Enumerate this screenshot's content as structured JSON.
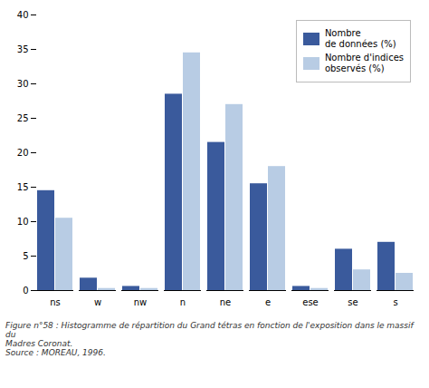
{
  "chart_data": {
    "type": "bar",
    "caption": "Figure n°58 : Histogramme de répartition du Grand tétras en fonction de l'exposition dans le massif du\nMadres Coronat.\nSource : MOREAU, 1996.",
    "categories": [
      "ns",
      "w",
      "nw",
      "n",
      "ne",
      "e",
      "ese",
      "se",
      "s"
    ],
    "series": [
      {
        "name": "Nombre\nde données (%)",
        "color": "#3a5a9c",
        "values": [
          14.5,
          1.8,
          0.6,
          28.5,
          21.5,
          15.5,
          0.6,
          6.0,
          7.0
        ]
      },
      {
        "name": "Nombre d'indices\nobservés (%)",
        "color": "#b8cce4",
        "values": [
          10.5,
          0.3,
          0.3,
          34.5,
          27.0,
          18.0,
          0.3,
          3.0,
          2.5
        ]
      }
    ],
    "ylim": [
      0,
      40
    ],
    "yticks": [
      0,
      5,
      10,
      15,
      20,
      25,
      30,
      35,
      40
    ],
    "grid": false,
    "legend": "upper right"
  }
}
